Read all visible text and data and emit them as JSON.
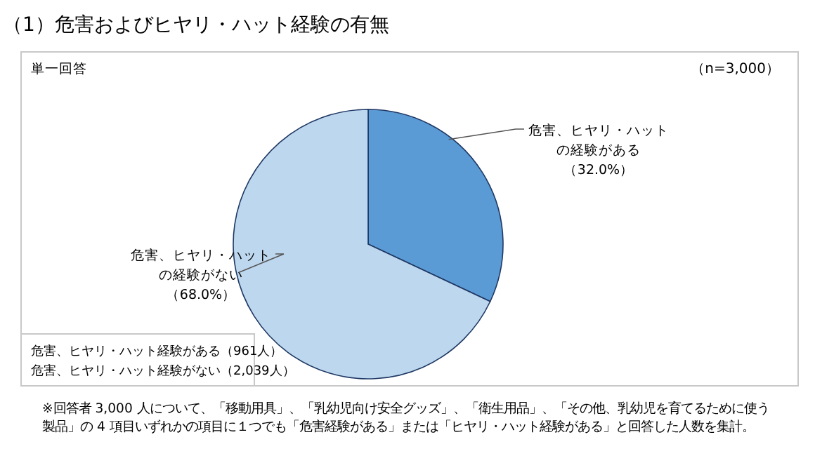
{
  "chart_data": {
    "type": "pie",
    "title": "（1）危害およびヒヤリ・ハット経験の有無",
    "categories": [
      "危害、ヒヤリ・ハットの経験がある",
      "危害、ヒヤリ・ハットの経験がない"
    ],
    "values": [
      32,
      68
    ],
    "value_labels": [
      "（32.0%）",
      "（68.0%）"
    ],
    "colors": [
      "#5b9bd5",
      "#bdd7ee"
    ],
    "annotations": [
      "単一回答",
      "（n=3,000）",
      "危害、ヒヤリ・ハット経験がある（961人）",
      "危害、ヒヤリ・ハット経験がない（2,039人）",
      "※回答者 3,000 人について、「移動用具」、「乳幼児向け安全グッズ」、「衛生用品」、「その他、乳幼児を育てるために使う製品」の 4 項目いずれかの項目に１つでも「危害経験がある」または「ヒヤリ・ハット経験がある」と回答した人数を集計。"
    ]
  }
}
